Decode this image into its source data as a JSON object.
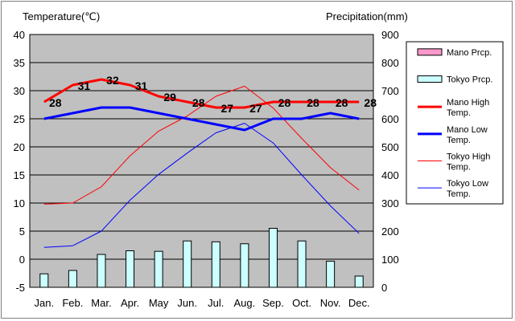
{
  "chart_data": {
    "type": "line",
    "left_axis_title": "Temperature(℃)",
    "right_axis_title": "Precipitation(mm)",
    "categories": [
      "Jan.",
      "Feb.",
      "Mar.",
      "Apr.",
      "May",
      "Jun.",
      "Jul.",
      "Aug.",
      "Sep.",
      "Oct.",
      "Nov.",
      "Dec."
    ],
    "left_axis": {
      "min": -5,
      "max": 40,
      "step": 5
    },
    "right_axis": {
      "min": 0,
      "max": 900,
      "step": 100
    },
    "bar_series": [
      {
        "name": "Mano Prcp.",
        "fill": "#ff99cc",
        "values": []
      },
      {
        "name": "Tokyo Prcp.",
        "fill": "#ccffff",
        "values": [
          48,
          60,
          117,
          130,
          128,
          165,
          162,
          155,
          210,
          165,
          93,
          40
        ]
      }
    ],
    "line_series": [
      {
        "name": "Mano High Temp.",
        "color": "#ff0000",
        "width": "thick",
        "values": [
          28,
          31,
          32,
          31,
          29,
          28,
          27,
          27,
          28,
          28,
          28,
          28
        ],
        "data_labels": [
          "28",
          "31",
          "32",
          "31",
          "29",
          "28",
          "27",
          "27",
          "28",
          "28",
          "28",
          "28"
        ]
      },
      {
        "name": "Mano Low Temp.",
        "color": "#0000ff",
        "width": "thick",
        "values": [
          25,
          26,
          27,
          27,
          26,
          25,
          24,
          23,
          25,
          25,
          26,
          25
        ]
      },
      {
        "name": "Tokyo High Temp.",
        "color": "#ff0000",
        "width": "thin",
        "values": [
          9.8,
          10.0,
          12.9,
          18.4,
          22.8,
          25.5,
          29.0,
          30.8,
          26.9,
          21.5,
          16.3,
          12.3
        ]
      },
      {
        "name": "Tokyo Low Temp.",
        "color": "#0000ff",
        "width": "thin",
        "values": [
          2.1,
          2.4,
          5.0,
          10.5,
          15.1,
          18.9,
          22.5,
          24.2,
          20.7,
          15.0,
          9.5,
          4.6
        ]
      }
    ],
    "grid": true,
    "legend_position": "right"
  }
}
